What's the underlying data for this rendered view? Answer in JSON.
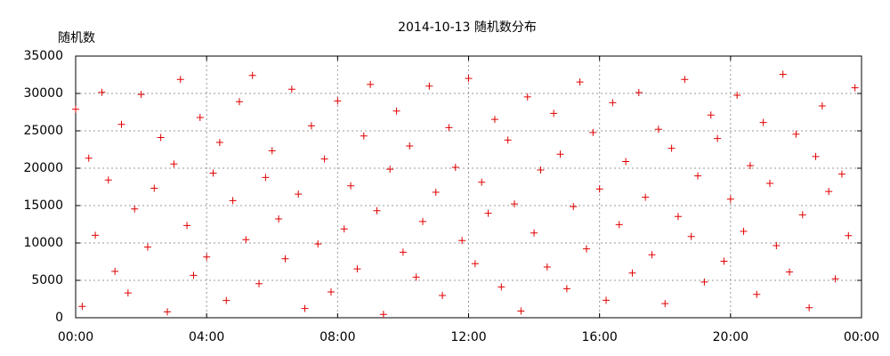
{
  "chart_data": {
    "type": "scatter",
    "title": "2014-10-13 随机数分布",
    "y_label": "随机数",
    "x": [
      0,
      0.2,
      0.4,
      0.6,
      0.8,
      1,
      1.2,
      1.4,
      1.6,
      1.8,
      2,
      2.2,
      2.4,
      2.6,
      2.8,
      3,
      3.2,
      3.4,
      3.6,
      3.8,
      4,
      4.2,
      4.4,
      4.6,
      4.8,
      5,
      5.2,
      5.4,
      5.6,
      5.8,
      6,
      6.2,
      6.4,
      6.6,
      6.8,
      7,
      7.2,
      7.4,
      7.6,
      7.8,
      8,
      8.2,
      8.4,
      8.6,
      8.8,
      9,
      9.2,
      9.4,
      9.6,
      9.8,
      10,
      10.2,
      10.4,
      10.6,
      10.8,
      11,
      11.2,
      11.4,
      11.6,
      11.8,
      12,
      12.2,
      12.4,
      12.6,
      12.8,
      13,
      13.2,
      13.4,
      13.6,
      13.8,
      14,
      14.2,
      14.4,
      14.6,
      14.8,
      15,
      15.2,
      15.4,
      15.6,
      15.8,
      16,
      16.2,
      16.4,
      16.6,
      16.8,
      17,
      17.2,
      17.4,
      17.6,
      17.8,
      18,
      18.2,
      18.4,
      18.6,
      18.8,
      19,
      19.2,
      19.4,
      19.6,
      19.8,
      20,
      20.2,
      20.4,
      20.6,
      20.8,
      21,
      21.2,
      21.4,
      21.6,
      21.8,
      22,
      22.2,
      22.4,
      22.6,
      22.8,
      23,
      23.2,
      23.4,
      23.6,
      23.8
    ],
    "values": [
      27890,
      1520,
      21340,
      11020,
      30150,
      18430,
      6210,
      25870,
      3320,
      14560,
      29870,
      9450,
      17320,
      24110,
      790,
      20560,
      31870,
      12340,
      5670,
      26780,
      8120,
      19340,
      23450,
      2310,
      15670,
      28900,
      10450,
      32410,
      4560,
      18760,
      22340,
      13210,
      7890,
      30560,
      16540,
      1230,
      25670,
      9870,
      21230,
      3450,
      29010,
      11870,
      17650,
      6540,
      24320,
      31200,
      14320,
      450,
      19870,
      27650,
      8760,
      22980,
      5430,
      12870,
      30980,
      16780,
      2980,
      25430,
      20120,
      10320,
      32010,
      7230,
      18120,
      13980,
      26540,
      4120,
      23760,
      15230,
      890,
      29540,
      11340,
      19760,
      6780,
      27340,
      21870,
      3890,
      14870,
      31540,
      9210,
      24780,
      17210,
      2340,
      28760,
      12450,
      20890,
      5980,
      30120,
      16120,
      8430,
      25210,
      1890,
      22670,
      13540,
      31870,
      10870,
      18980,
      4780,
      27120,
      23980,
      7560,
      15870,
      29760,
      11560,
      20340,
      3120,
      26120,
      17980,
      9650,
      32560,
      6120,
      24560,
      13760,
      1340,
      21560,
      28340,
      16890,
      5210,
      19210,
      10980,
      30760
    ],
    "color": "#e00000",
    "xlim": [
      0,
      24
    ],
    "xticks": [
      {
        "value": 0,
        "label": "00:00"
      },
      {
        "value": 4,
        "label": "04:00"
      },
      {
        "value": 8,
        "label": "08:00"
      },
      {
        "value": 12,
        "label": "12:00"
      },
      {
        "value": 16,
        "label": "16:00"
      },
      {
        "value": 20,
        "label": "20:00"
      },
      {
        "value": 24,
        "label": "00:00"
      }
    ],
    "ylim": [
      0,
      35000
    ],
    "yticks": [
      0,
      5000,
      10000,
      15000,
      20000,
      25000,
      30000,
      35000
    ],
    "grid": true
  }
}
